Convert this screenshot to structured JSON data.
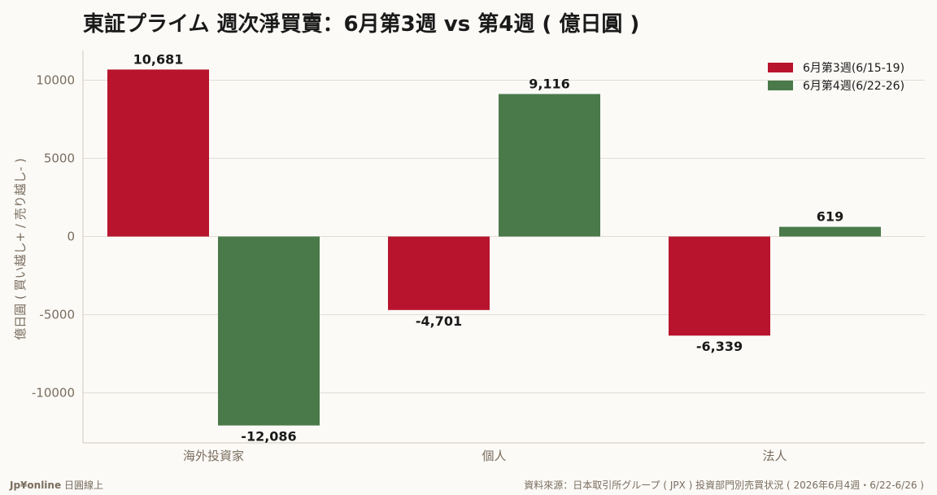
{
  "footer": {
    "brand": "Jp¥online",
    "tagline": "日圓線上",
    "source": "資料來源：日本取引所グループ ( JPX ) 投資部門別売買状況 ( 2026年6月4週・6/22-6/26 )"
  },
  "chart_data": {
    "type": "bar",
    "title": "東証プライム 週次淨買賣：6月第3週 vs 第4週 ( 億日圓 )",
    "xlabel": "",
    "ylabel": "億日圓 ( 買い越し+ / 売り越し- )",
    "categories": [
      "海外投資家",
      "個人",
      "法人"
    ],
    "series": [
      {
        "name": "6月第3週(6/15-19)",
        "values": [
          10681,
          -4701,
          -6339
        ],
        "labels": [
          "10,681",
          "-4,701",
          "-6,339"
        ],
        "color": "#b8142d"
      },
      {
        "name": "6月第4週(6/22-26)",
        "values": [
          -12086,
          9116,
          619
        ],
        "labels": [
          "-12,086",
          "9,116",
          "619"
        ],
        "color": "#4a7a4a"
      }
    ],
    "ylim": [
      -13200,
      11900
    ],
    "yticks": [
      -10000,
      -5000,
      0,
      5000,
      10000
    ],
    "grid": true,
    "legend": "top-right"
  }
}
